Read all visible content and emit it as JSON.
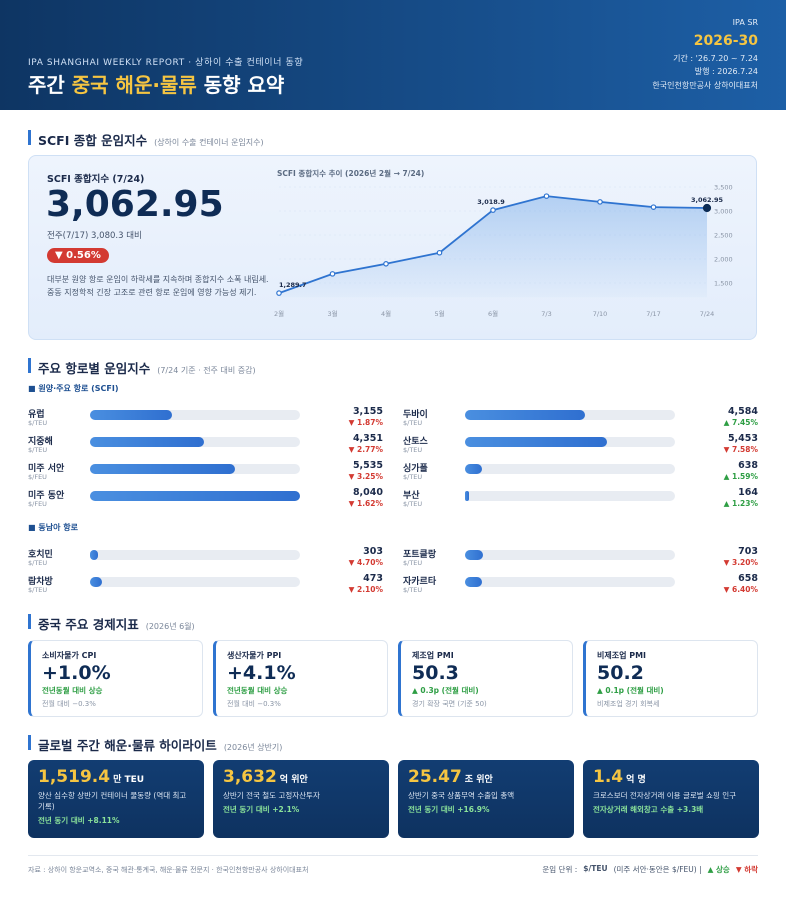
{
  "header": {
    "kicker": "IPA SHANGHAI WEEKLY REPORT · 상하이 수출 컨테이너 동향",
    "title_parts": [
      "주간",
      "중국 해운·물류",
      "동향 요약"
    ],
    "badge": "IPA SR",
    "issue": "2026-30",
    "period": "기간 : '26.7.20 ~ 7.24",
    "published": "발행 : 2026.7.24",
    "org": "한국인천항만공사 상하이대표처"
  },
  "scfi": {
    "title": "SCFI 종합 운임지수",
    "subtitle": "(상하이 수출 컨테이너 운임지수)",
    "label": "SCFI 종합지수 (7/24)",
    "value": "3,062.95",
    "compare": "전주(7/17) 3,080.3 대비",
    "change": "▼ 0.56%",
    "notes": [
      "대부분 원양 항로 운임이 하락세를 지속하며 종합지수 소폭 내림세.",
      "중동 지정학적 긴장 고조로 관련 항로 운임에 영향 가능성 제기."
    ],
    "chart": {
      "type": "line",
      "title": "SCFI 종합지수 추이 (2026년 2월 → 7/24)",
      "categories": [
        "2월",
        "3월",
        "4월",
        "5월",
        "6월",
        "7/3",
        "7/10",
        "7/17",
        "7/24"
      ],
      "values": [
        1289.7,
        1690,
        1900,
        2130,
        3018.9,
        3310,
        3190,
        3080.3,
        3062.95
      ],
      "value_labels": [
        "1,289.7",
        null,
        null,
        null,
        "3,018.9",
        null,
        null,
        null,
        "3,062.95"
      ],
      "color": "#2f74d0",
      "ylim": [
        1200,
        3550
      ],
      "yticks": [
        {
          "value": 1500,
          "label": "1,500"
        },
        {
          "value": 2000,
          "label": "2,000"
        },
        {
          "value": 2500,
          "label": "2,500"
        },
        {
          "value": 3000,
          "label": "3,000"
        },
        {
          "value": 3500,
          "label": "3,500"
        }
      ]
    }
  },
  "routes": {
    "title": "주요 항로별 운임지수",
    "subtitle": "(7/24 기준 · 전주 대비 증감)",
    "groups": [
      {
        "title": "■ 원양·주요 항로 (SCFI)",
        "items": [
          {
            "name": "유럽",
            "unit": "$/TEU",
            "value": 3155,
            "value_label": "3,155",
            "change": "▼ 1.87%"
          },
          {
            "name": "두바이",
            "unit": "$/TEU",
            "value": 4584,
            "value_label": "4,584",
            "change": "▲ 7.45%"
          },
          {
            "name": "지중해",
            "unit": "$/TEU",
            "value": 4351,
            "value_label": "4,351",
            "change": "▼ 2.77%"
          },
          {
            "name": "산토스",
            "unit": "$/TEU",
            "value": 5453,
            "value_label": "5,453",
            "change": "▼ 7.58%"
          },
          {
            "name": "미주 서안",
            "unit": "$/FEU",
            "value": 5535,
            "value_label": "5,535",
            "change": "▼ 3.25%"
          },
          {
            "name": "싱가폴",
            "unit": "$/TEU",
            "value": 638,
            "value_label": "638",
            "change": "▲ 1.59%"
          },
          {
            "name": "미주 동안",
            "unit": "$/FEU",
            "value": 8040,
            "value_label": "8,040",
            "change": "▼ 1.62%"
          },
          {
            "name": "부산",
            "unit": "$/TEU",
            "value": 164,
            "value_label": "164",
            "change": "▲ 1.23%"
          }
        ]
      },
      {
        "title": "■ 동남아 항로",
        "items": [
          {
            "name": "호치민",
            "unit": "$/TEU",
            "value": 303,
            "value_label": "303",
            "change": "▼ 4.70%"
          },
          {
            "name": "포트클랑",
            "unit": "$/TEU",
            "value": 703,
            "value_label": "703",
            "change": "▼ 3.20%"
          },
          {
            "name": "람차방",
            "unit": "$/TEU",
            "value": 473,
            "value_label": "473",
            "change": "▼ 2.10%"
          },
          {
            "name": "자카르타",
            "unit": "$/TEU",
            "value": 658,
            "value_label": "658",
            "change": "▼ 6.40%"
          }
        ]
      }
    ]
  },
  "indicators": {
    "title": "중국 주요 경제지표",
    "subtitle": "(2026년 6월)",
    "cards": [
      {
        "label": "소비자물가 CPI",
        "value": "+1.0%",
        "change": "전년동월 대비 상승",
        "note": "전월 대비 −0.3%"
      },
      {
        "label": "생산자물가 PPI",
        "value": "+4.1%",
        "change": "전년동월 대비 상승",
        "note": "전월 대비 −0.3%"
      },
      {
        "label": "제조업 PMI",
        "value": "50.3",
        "change": "▲ 0.3p (전월 대비)",
        "note": "경기 확장 국면 (기준 50)"
      },
      {
        "label": "비제조업 PMI",
        "value": "50.2",
        "change": "▲ 0.1p (전월 대비)",
        "note": "비제조업 경기 회복세"
      }
    ]
  },
  "highlights": {
    "title": "글로벌 주간 해운·물류 하이라이트",
    "subtitle": "(2026년 상반기)",
    "cards": [
      {
        "value": "1,519.4",
        "unit": "만 TEU",
        "desc": "양산 심수항 상반기 컨테이너 물동량 (역대 최고 기록)",
        "growth": "전년 동기 대비 +8.11%"
      },
      {
        "value": "3,632",
        "unit": "억 위안",
        "desc": "상반기 전국 철도 고정자산투자",
        "growth": "전년 동기 대비 +2.1%"
      },
      {
        "value": "25.47",
        "unit": "조 위안",
        "desc": "상반기 중국 상품무역 수출입 총액",
        "growth": "전년 동기 대비 +16.9%"
      },
      {
        "value": "1.4",
        "unit": "억 명",
        "desc": "크로스보더 전자상거래 이용 글로벌 쇼핑 인구",
        "growth": "전자상거래 해외창고 수출 +3.3배"
      }
    ]
  },
  "footer": {
    "source": "자료 : 상하이 항운교역소, 중국 해관·통계국, 해운·물류 전문지 · 한국인천항만공사 상하이대표처",
    "unit_label": "운임 단위 :",
    "unit": "$/TEU",
    "unit_note": "(미주 서안·동안은 $/FEU) |",
    "up": "▲ 상승",
    "down": "▼ 하락"
  }
}
